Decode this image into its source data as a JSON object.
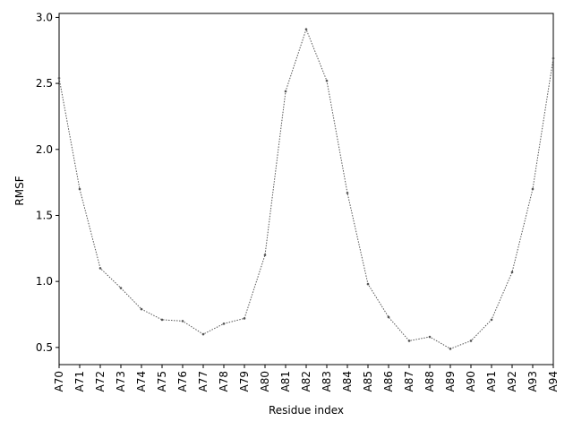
{
  "chart_data": {
    "type": "line",
    "x_label": "Residue index",
    "y_label": "RMSF",
    "categories": [
      "A70",
      "A71",
      "A72",
      "A73",
      "A74",
      "A75",
      "A76",
      "A77",
      "A78",
      "A79",
      "A80",
      "A81",
      "A82",
      "A83",
      "A84",
      "A85",
      "A86",
      "A87",
      "A88",
      "A89",
      "A90",
      "A91",
      "A92",
      "A93",
      "A94"
    ],
    "values": [
      2.54,
      1.7,
      1.1,
      0.95,
      0.79,
      0.71,
      0.7,
      0.6,
      0.68,
      0.72,
      1.2,
      2.44,
      2.91,
      2.52,
      1.67,
      0.98,
      0.73,
      0.55,
      0.58,
      0.49,
      0.55,
      0.71,
      1.07,
      1.7,
      2.69
    ],
    "color": "#555555",
    "ylim": [
      0.37,
      3.03
    ],
    "yticks": [
      0.5,
      {
        "value": 1,
        "label": "1.0"
      },
      1.5,
      {
        "value": 2,
        "label": "2.0"
      },
      2.5,
      {
        "value": 3,
        "label": "3.0"
      }
    ]
  }
}
